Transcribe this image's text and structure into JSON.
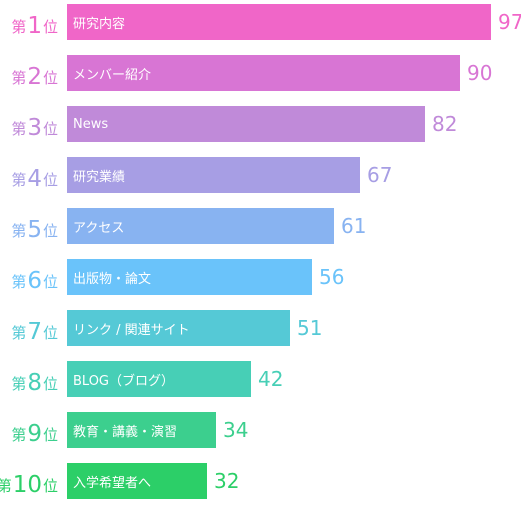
{
  "chart_data": {
    "type": "bar",
    "orientation": "horizontal",
    "rank_prefix": "第",
    "rank_suffix": "位",
    "categories": [
      "研究内容",
      "メンバー紹介",
      "News",
      "研究業績",
      "アクセス",
      "出版物・論文",
      "リンク / 関連サイト",
      "BLOG（ブログ）",
      "教育・講義・演習",
      "入学希望者へ"
    ],
    "ranks": [
      1,
      2,
      3,
      4,
      5,
      6,
      7,
      8,
      9,
      10
    ],
    "values": [
      97,
      90,
      82,
      67,
      61,
      56,
      51,
      42,
      34,
      32
    ],
    "colors": [
      "#f066c8",
      "#d875d4",
      "#c08ad9",
      "#a79ee4",
      "#88b3f1",
      "#6ac3fa",
      "#55c9d6",
      "#47cfb6",
      "#3ccf8e",
      "#2ccf68"
    ],
    "xlim": [
      0,
      97
    ],
    "grid": false,
    "legend": "none"
  }
}
